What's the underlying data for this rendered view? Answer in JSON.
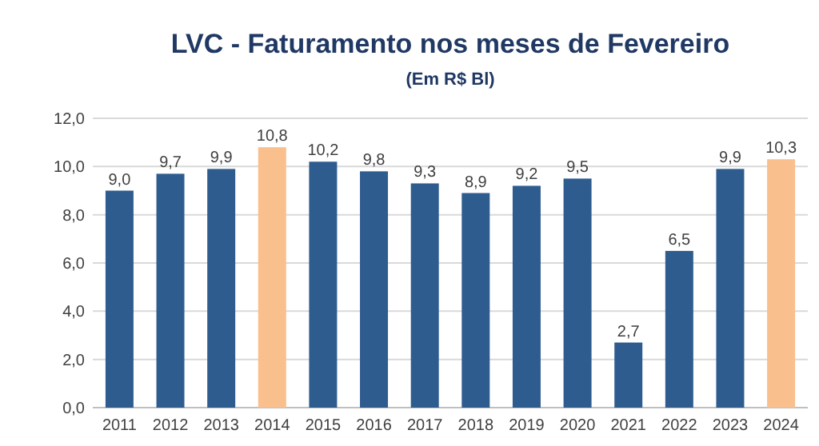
{
  "chart_data": {
    "type": "bar",
    "title": "LVC - Faturamento nos meses de Fevereiro",
    "subtitle": "(Em R$ Bl)",
    "categories": [
      "2011",
      "2012",
      "2013",
      "2014",
      "2015",
      "2016",
      "2017",
      "2018",
      "2019",
      "2020",
      "2021",
      "2022",
      "2023",
      "2024"
    ],
    "values": [
      9.0,
      9.7,
      9.9,
      10.8,
      10.2,
      9.8,
      9.3,
      8.9,
      9.2,
      9.5,
      2.7,
      6.5,
      9.9,
      10.3
    ],
    "value_labels": [
      "9,0",
      "9,7",
      "9,9",
      "10,8",
      "10,2",
      "9,8",
      "9,3",
      "8,9",
      "9,2",
      "9,5",
      "2,7",
      "6,5",
      "9,9",
      "10,3"
    ],
    "colors": [
      "#2f5c8f",
      "#2f5c8f",
      "#2f5c8f",
      "#f9c08e",
      "#2f5c8f",
      "#2f5c8f",
      "#2f5c8f",
      "#2f5c8f",
      "#2f5c8f",
      "#2f5c8f",
      "#2f5c8f",
      "#2f5c8f",
      "#2f5c8f",
      "#f9c08e"
    ],
    "ylim": [
      0,
      12
    ],
    "yticks": [
      {
        "value": 0,
        "label": "0,0"
      },
      {
        "value": 2,
        "label": "2,0"
      },
      {
        "value": 4,
        "label": "4,0"
      },
      {
        "value": 6,
        "label": "6,0"
      },
      {
        "value": 8,
        "label": "8,0"
      },
      {
        "value": 10,
        "label": "10,0"
      },
      {
        "value": 12,
        "label": "12,0"
      }
    ],
    "grid": "y"
  }
}
